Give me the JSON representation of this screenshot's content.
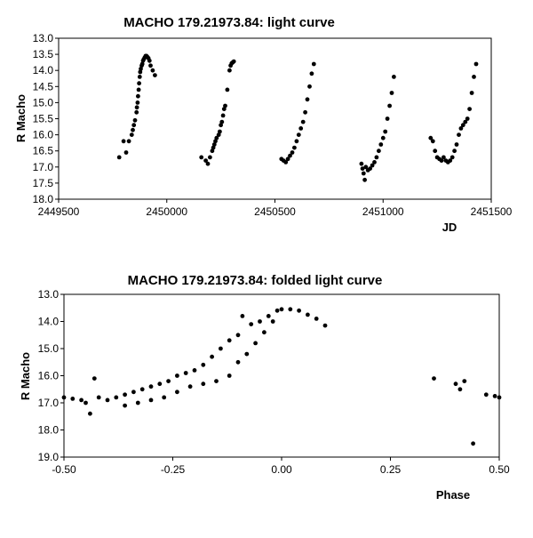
{
  "chart_data": [
    {
      "type": "scatter",
      "title": "MACHO 179.21973.84: light curve",
      "xlabel": "JD",
      "ylabel": "R Macho",
      "xlim": [
        2449500,
        2451500
      ],
      "ylim": [
        13.0,
        18.0
      ],
      "y_inverted": true,
      "grid": false,
      "x_ticks": [
        "2449500",
        "2450000",
        "2450500",
        "2451000",
        "2451500"
      ],
      "y_ticks": [
        "13.0",
        "13.5",
        "14.0",
        "14.5",
        "15.0",
        "15.5",
        "16.0",
        "16.5",
        "17.0",
        "17.5",
        "18.0"
      ],
      "series": [
        {
          "color": "#000000",
          "points": [
            [
              2449780,
              16.7
            ],
            [
              2449800,
              16.2
            ],
            [
              2449812,
              16.55
            ],
            [
              2449825,
              16.2
            ],
            [
              2449838,
              16.0
            ],
            [
              2449843,
              15.85
            ],
            [
              2449848,
              15.7
            ],
            [
              2449853,
              15.55
            ],
            [
              2449860,
              15.3
            ],
            [
              2449862,
              15.15
            ],
            [
              2449865,
              15.0
            ],
            [
              2449867,
              14.8
            ],
            [
              2449870,
              14.6
            ],
            [
              2449872,
              14.4
            ],
            [
              2449875,
              14.2
            ],
            [
              2449877,
              14.05
            ],
            [
              2449880,
              13.95
            ],
            [
              2449884,
              13.85
            ],
            [
              2449887,
              13.8
            ],
            [
              2449890,
              13.7
            ],
            [
              2449894,
              13.65
            ],
            [
              2449898,
              13.6
            ],
            [
              2449902,
              13.55
            ],
            [
              2449906,
              13.55
            ],
            [
              2449910,
              13.58
            ],
            [
              2449915,
              13.62
            ],
            [
              2449920,
              13.7
            ],
            [
              2449925,
              13.85
            ],
            [
              2449935,
              14.0
            ],
            [
              2449945,
              14.15
            ],
            [
              2450160,
              16.7
            ],
            [
              2450180,
              16.8
            ],
            [
              2450190,
              16.9
            ],
            [
              2450200,
              16.7
            ],
            [
              2450210,
              16.5
            ],
            [
              2450215,
              16.4
            ],
            [
              2450220,
              16.3
            ],
            [
              2450225,
              16.2
            ],
            [
              2450230,
              16.1
            ],
            [
              2450240,
              16.0
            ],
            [
              2450245,
              15.9
            ],
            [
              2450250,
              15.7
            ],
            [
              2450255,
              15.6
            ],
            [
              2450260,
              15.4
            ],
            [
              2450265,
              15.2
            ],
            [
              2450270,
              15.1
            ],
            [
              2450280,
              14.6
            ],
            [
              2450290,
              14.0
            ],
            [
              2450295,
              13.85
            ],
            [
              2450300,
              13.78
            ],
            [
              2450305,
              13.75
            ],
            [
              2450310,
              13.72
            ],
            [
              2450530,
              16.75
            ],
            [
              2450540,
              16.8
            ],
            [
              2450550,
              16.85
            ],
            [
              2450560,
              16.75
            ],
            [
              2450570,
              16.65
            ],
            [
              2450580,
              16.55
            ],
            [
              2450590,
              16.4
            ],
            [
              2450600,
              16.2
            ],
            [
              2450610,
              16.0
            ],
            [
              2450620,
              15.8
            ],
            [
              2450630,
              15.6
            ],
            [
              2450640,
              15.3
            ],
            [
              2450650,
              14.9
            ],
            [
              2450660,
              14.5
            ],
            [
              2450670,
              14.1
            ],
            [
              2450680,
              13.8
            ],
            [
              2450900,
              16.9
            ],
            [
              2450905,
              17.05
            ],
            [
              2450910,
              17.2
            ],
            [
              2450915,
              17.4
            ],
            [
              2450920,
              17.0
            ],
            [
              2450930,
              17.1
            ],
            [
              2450940,
              17.05
            ],
            [
              2450950,
              16.95
            ],
            [
              2450960,
              16.85
            ],
            [
              2450970,
              16.7
            ],
            [
              2450980,
              16.5
            ],
            [
              2450990,
              16.3
            ],
            [
              2451000,
              16.1
            ],
            [
              2451010,
              15.9
            ],
            [
              2451020,
              15.5
            ],
            [
              2451030,
              15.1
            ],
            [
              2451040,
              14.7
            ],
            [
              2451050,
              14.2
            ],
            [
              2451220,
              16.1
            ],
            [
              2451230,
              16.2
            ],
            [
              2451240,
              16.5
            ],
            [
              2451250,
              16.7
            ],
            [
              2451260,
              16.75
            ],
            [
              2451270,
              16.8
            ],
            [
              2451280,
              16.7
            ],
            [
              2451290,
              16.8
            ],
            [
              2451300,
              16.85
            ],
            [
              2451310,
              16.8
            ],
            [
              2451320,
              16.7
            ],
            [
              2451330,
              16.5
            ],
            [
              2451340,
              16.3
            ],
            [
              2451350,
              16.0
            ],
            [
              2451360,
              15.8
            ],
            [
              2451370,
              15.7
            ],
            [
              2451380,
              15.6
            ],
            [
              2451390,
              15.5
            ],
            [
              2451400,
              15.2
            ],
            [
              2451410,
              14.7
            ],
            [
              2451420,
              14.2
            ],
            [
              2451430,
              13.8
            ]
          ]
        }
      ]
    },
    {
      "type": "scatter",
      "title": "MACHO 179.21973.84: folded light curve",
      "xlabel": "Phase",
      "ylabel": "R Macho",
      "xlim": [
        -0.5,
        0.5
      ],
      "ylim": [
        13.0,
        19.0
      ],
      "y_inverted": true,
      "grid": false,
      "x_ticks": [
        "-0.50",
        "-0.25",
        "0.00",
        "0.25",
        "0.50"
      ],
      "y_ticks": [
        "13.0",
        "14.0",
        "15.0",
        "16.0",
        "17.0",
        "18.0",
        "19.0"
      ],
      "series": [
        {
          "color": "#000000",
          "points": [
            [
              -0.5,
              16.8
            ],
            [
              -0.48,
              16.85
            ],
            [
              -0.46,
              16.9
            ],
            [
              -0.45,
              17.0
            ],
            [
              -0.44,
              17.4
            ],
            [
              -0.43,
              16.1
            ],
            [
              -0.42,
              16.8
            ],
            [
              -0.4,
              16.9
            ],
            [
              -0.38,
              16.8
            ],
            [
              -0.36,
              16.7
            ],
            [
              -0.34,
              16.6
            ],
            [
              -0.32,
              16.5
            ],
            [
              -0.3,
              16.4
            ],
            [
              -0.28,
              16.3
            ],
            [
              -0.26,
              16.2
            ],
            [
              -0.24,
              16.0
            ],
            [
              -0.22,
              15.9
            ],
            [
              -0.2,
              15.8
            ],
            [
              -0.18,
              15.6
            ],
            [
              -0.16,
              15.3
            ],
            [
              -0.14,
              15.0
            ],
            [
              -0.12,
              14.7
            ],
            [
              -0.1,
              14.5
            ],
            [
              -0.09,
              13.8
            ],
            [
              -0.07,
              14.1
            ],
            [
              -0.05,
              14.0
            ],
            [
              -0.03,
              13.8
            ],
            [
              -0.01,
              13.6
            ],
            [
              0.0,
              13.55
            ],
            [
              0.02,
              13.55
            ],
            [
              0.04,
              13.6
            ],
            [
              0.06,
              13.75
            ],
            [
              0.08,
              13.9
            ],
            [
              0.1,
              14.15
            ],
            [
              -0.36,
              17.1
            ],
            [
              -0.33,
              17.0
            ],
            [
              -0.3,
              16.9
            ],
            [
              -0.27,
              16.8
            ],
            [
              -0.24,
              16.6
            ],
            [
              -0.21,
              16.4
            ],
            [
              -0.18,
              16.3
            ],
            [
              -0.15,
              16.2
            ],
            [
              -0.12,
              16.0
            ],
            [
              -0.1,
              15.5
            ],
            [
              -0.08,
              15.2
            ],
            [
              -0.06,
              14.8
            ],
            [
              -0.04,
              14.4
            ],
            [
              -0.02,
              14.0
            ],
            [
              0.35,
              16.1
            ],
            [
              0.4,
              16.3
            ],
            [
              0.41,
              16.5
            ],
            [
              0.42,
              16.2
            ],
            [
              0.44,
              18.5
            ],
            [
              0.47,
              16.7
            ],
            [
              0.49,
              16.75
            ],
            [
              0.5,
              16.8
            ]
          ]
        }
      ]
    }
  ]
}
